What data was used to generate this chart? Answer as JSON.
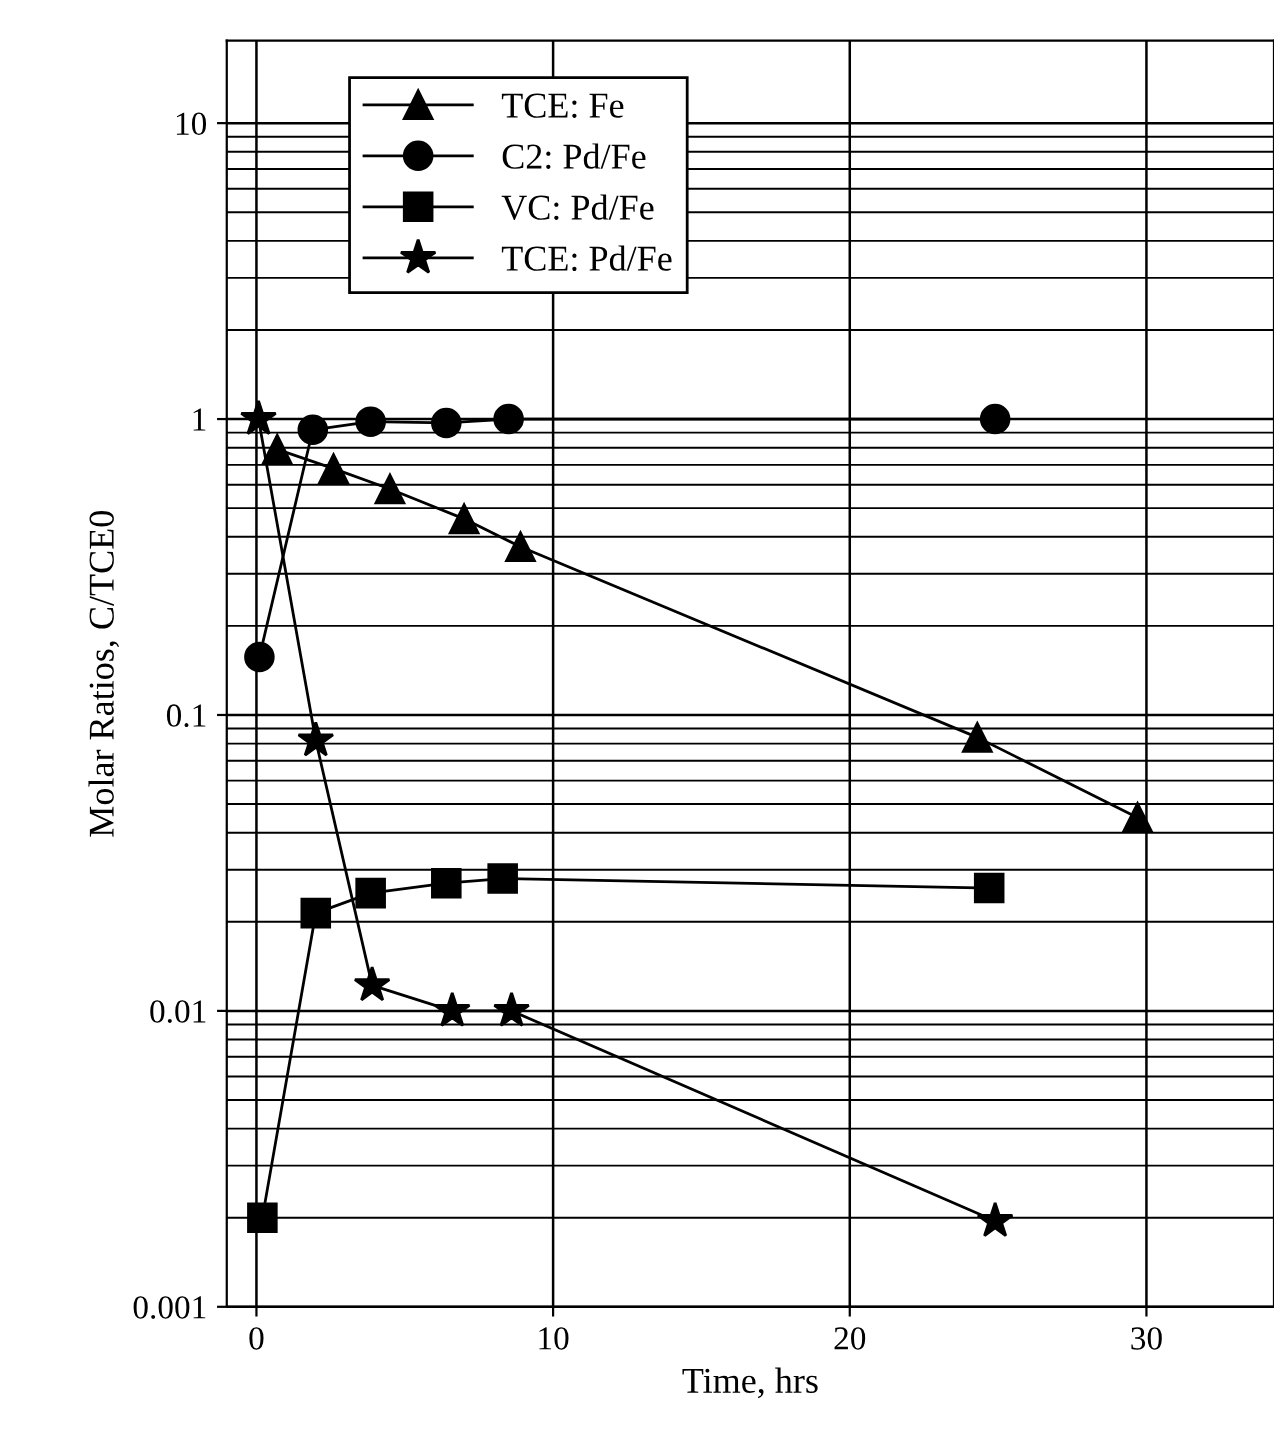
{
  "chart_data": {
    "type": "line",
    "xlabel": "Time, hrs",
    "ylabel": "Molar Ratios, C/TCE0",
    "log": "y",
    "xlim": [
      -1,
      34.3
    ],
    "ylim": [
      0.001,
      19
    ],
    "xticks": [
      0,
      10,
      20,
      30
    ],
    "yticks": [
      0.001,
      0.01,
      0.1,
      1,
      10
    ],
    "grid": true,
    "legend": "top left",
    "line_style": "solid",
    "series": [
      {
        "name": "TCE: Fe",
        "color": "#000000",
        "marker": "triangle",
        "x": [
          0.7,
          2.6,
          4.5,
          7.0,
          8.9,
          24.3,
          29.7
        ],
        "values": [
          0.79,
          0.68,
          0.58,
          0.46,
          0.37,
          0.084,
          0.045
        ]
      },
      {
        "name": "C2: Pd/Fe",
        "color": "#000000",
        "marker": "circle",
        "x": [
          0.1,
          1.9,
          3.85,
          6.4,
          8.5,
          24.9
        ],
        "values": [
          0.157,
          0.92,
          0.98,
          0.97,
          1.0,
          1.0
        ]
      },
      {
        "name": "VC: Pd/Fe",
        "color": "#000000",
        "marker": "square",
        "x": [
          0.2,
          2.0,
          3.85,
          6.4,
          8.3,
          24.7
        ],
        "values": [
          0.002,
          0.0214,
          0.025,
          0.027,
          0.028,
          0.026
        ]
      },
      {
        "name": "TCE: Pd/Fe",
        "color": "#000000",
        "marker": "star",
        "x": [
          0.07,
          2.0,
          3.9,
          6.6,
          8.6,
          24.9
        ],
        "values": [
          1.0,
          0.082,
          0.0122,
          0.01,
          0.01,
          0.00195
        ]
      }
    ]
  }
}
